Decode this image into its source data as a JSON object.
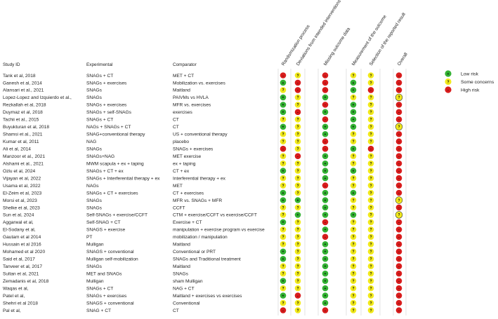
{
  "headers": {
    "study": "Study ID",
    "experimental": "Experimental",
    "comparator": "Comparator"
  },
  "domains": [
    "Randomization process",
    "Deviations from intended interventions",
    "Missing outcome data",
    "Measurement of the outcome",
    "Selection of the reported result",
    "Overall"
  ],
  "legend": [
    {
      "key": "L",
      "label": "Low risk"
    },
    {
      "key": "S",
      "label": "Some concerns"
    },
    {
      "key": "H",
      "label": "High risk"
    }
  ],
  "colors": {
    "L": "#33b233",
    "S": "#f2ea1c",
    "H": "#d81c1c"
  },
  "symbols": {
    "L": "+",
    "S": "?",
    "H": "-"
  },
  "studies": [
    {
      "id": "Tank et al, 2018",
      "exp": "SNAGs + CT",
      "comp": "MET + CT",
      "r": [
        "H",
        "S",
        "H",
        "S",
        "S",
        "H"
      ]
    },
    {
      "id": "Ganesh et al, 2014",
      "exp": "SNAGs + exercises",
      "comp": "Mobilization vs. exercises",
      "r": [
        "L",
        "H",
        "H",
        "L",
        "S",
        "H"
      ]
    },
    {
      "id": "Alansari et al., 2021",
      "exp": "SNAGs",
      "comp": "Maitland",
      "r": [
        "S",
        "H",
        "H",
        "L",
        "H",
        "H"
      ]
    },
    {
      "id": "Lopez-Lopez and Izquierdo et al.,",
      "exp": "SNAGs",
      "comp": "PAIVMs vs HVLA",
      "r": [
        "L",
        "S",
        "L",
        "S",
        "S",
        "S"
      ]
    },
    {
      "id": "Rezkallah et al, 2018",
      "exp": "SNAGs + exercises",
      "comp": "MFR vs. exercises",
      "r": [
        "L",
        "S",
        "H",
        "L",
        "S",
        "H"
      ]
    },
    {
      "id": "Duymaz et al, 2018",
      "exp": "SNAGs + self-SNAGs",
      "comp": "exercises",
      "r": [
        "L",
        "H",
        "L",
        "L",
        "S",
        "H"
      ]
    },
    {
      "id": "Tachii et al., 2015",
      "exp": "SNAGs + CT",
      "comp": "CT",
      "r": [
        "S",
        "S",
        "H",
        "L",
        "S",
        "H"
      ]
    },
    {
      "id": "Buyukturan et al, 2018",
      "exp": "NAGs + SNAGs + CT",
      "comp": "CT",
      "r": [
        "L",
        "S",
        "L",
        "L",
        "S",
        "S"
      ]
    },
    {
      "id": "Shamsi et al., 2021",
      "exp": "SNAG+conventional therapy",
      "comp": "US + conventional therapy",
      "r": [
        "S",
        "S",
        "L",
        "S",
        "S",
        "H"
      ]
    },
    {
      "id": "Kumar et al, 2011",
      "exp": "NAG",
      "comp": "placebo",
      "r": [
        "S",
        "S",
        "H",
        "S",
        "S",
        "H"
      ]
    },
    {
      "id": "Ali et al, 2014",
      "exp": "SNAGs",
      "comp": "SNAGs + exercises",
      "r": [
        "H",
        "S",
        "H",
        "L",
        "H",
        "H"
      ]
    },
    {
      "id": "Manzoor et al., 2021",
      "exp": "SNAGs+NAG",
      "comp": "MET exercise",
      "r": [
        "S",
        "H",
        "L",
        "S",
        "S",
        "H"
      ]
    },
    {
      "id": "Alshami et al., 2021",
      "exp": "MWM scapula + ex + taping",
      "comp": "ex + taping",
      "r": [
        "S",
        "S",
        "L",
        "S",
        "S",
        "H"
      ]
    },
    {
      "id": "Ozlu et al, 2024",
      "exp": "SNAGs + CT + ex",
      "comp": "CT + ex",
      "r": [
        "L",
        "S",
        "L",
        "L",
        "S",
        "H"
      ]
    },
    {
      "id": "Vijayan et al, 2022",
      "exp": "SNAGs + Interferential therapy + ex",
      "comp": "Interferential therapy + ex",
      "r": [
        "S",
        "S",
        "L",
        "S",
        "S",
        "H"
      ]
    },
    {
      "id": "Usama et al, 2022",
      "exp": "NAGs",
      "comp": "MET",
      "r": [
        "S",
        "S",
        "H",
        "S",
        "S",
        "H"
      ]
    },
    {
      "id": "El-Zeim et al, 2023",
      "exp": "SNAGs + CT + exercises",
      "comp": "CT + exercises",
      "r": [
        "L",
        "S",
        "L",
        "L",
        "S",
        "H"
      ]
    },
    {
      "id": "Morsi et al, 2023",
      "exp": "SNAGs",
      "comp": "MFR vs. SNAGs + MFR",
      "r": [
        "L",
        "L",
        "L",
        "S",
        "S",
        "S"
      ]
    },
    {
      "id": "Shelke et al, 2023",
      "exp": "SNAGs",
      "comp": "CCFT",
      "r": [
        "S",
        "S",
        "L",
        "S",
        "S",
        "H"
      ]
    },
    {
      "id": "Sun et al, 2024",
      "exp": "Self-SNAGs + exercise/CCFT",
      "comp": "CTM + exercise/CCFT vs exercise/CCFT",
      "r": [
        "S",
        "L",
        "L",
        "L",
        "S",
        "S"
      ]
    },
    {
      "id": "Aggarwal et al,",
      "exp": "Self-SNAG + CT",
      "comp": "Exercise + CT",
      "r": [
        "L",
        "S",
        "H",
        "S",
        "S",
        "H"
      ]
    },
    {
      "id": "El-Sodany et al,",
      "exp": "SNAGS + exercise",
      "comp": "manipulation + exercise program vs exercise",
      "r": [
        "S",
        "S",
        "L",
        "S",
        "S",
        "H"
      ]
    },
    {
      "id": "Gautam et al 2014",
      "exp": "PT",
      "comp": "mobilization / manipulation",
      "r": [
        "S",
        "S",
        "H",
        "S",
        "S",
        "H"
      ]
    },
    {
      "id": "Hussain et al 2016",
      "exp": "Mulligan",
      "comp": "Maitland",
      "r": [
        "S",
        "S",
        "L",
        "S",
        "S",
        "H"
      ]
    },
    {
      "id": "Mohamed et al 2020",
      "exp": "SNAGS + conventional",
      "comp": "Conventional or PRT",
      "r": [
        "L",
        "S",
        "L",
        "S",
        "S",
        "H"
      ]
    },
    {
      "id": "Said et al, 2017",
      "exp": "Mulligan self-mobilization",
      "comp": "SNAGs and Traditional treatment",
      "r": [
        "L",
        "S",
        "L",
        "S",
        "S",
        "H"
      ]
    },
    {
      "id": "Tanveer et al, 2017",
      "exp": "SNAGs",
      "comp": "Maitland",
      "r": [
        "S",
        "S",
        "L",
        "S",
        "S",
        "H"
      ]
    },
    {
      "id": "Sultan et al, 2021",
      "exp": "MET and SNAGs",
      "comp": "SNAGs",
      "r": [
        "S",
        "S",
        "L",
        "S",
        "S",
        "H"
      ]
    },
    {
      "id": "Zemadanis et al, 2018",
      "exp": "Mulligan",
      "comp": "sham Mulligan",
      "r": [
        "L",
        "S",
        "L",
        "S",
        "S",
        "H"
      ]
    },
    {
      "id": "Waqas et al,",
      "exp": "SNAGs + CT",
      "comp": "NAG + CT",
      "r": [
        "S",
        "S",
        "L",
        "S",
        "S",
        "H"
      ]
    },
    {
      "id": "Patel et al,",
      "exp": "SNAGs + exercises",
      "comp": "Maitland + exercises vs exercises",
      "r": [
        "L",
        "H",
        "L",
        "S",
        "S",
        "H"
      ]
    },
    {
      "id": "Shehri et al 2018",
      "exp": "SNAGS + conventional",
      "comp": "Conventional",
      "r": [
        "S",
        "S",
        "L",
        "S",
        "S",
        "H"
      ]
    },
    {
      "id": "Pal et al,",
      "exp": "SNAG + CT",
      "comp": "CT",
      "r": [
        "H",
        "S",
        "H",
        "S",
        "S",
        "H"
      ]
    }
  ]
}
